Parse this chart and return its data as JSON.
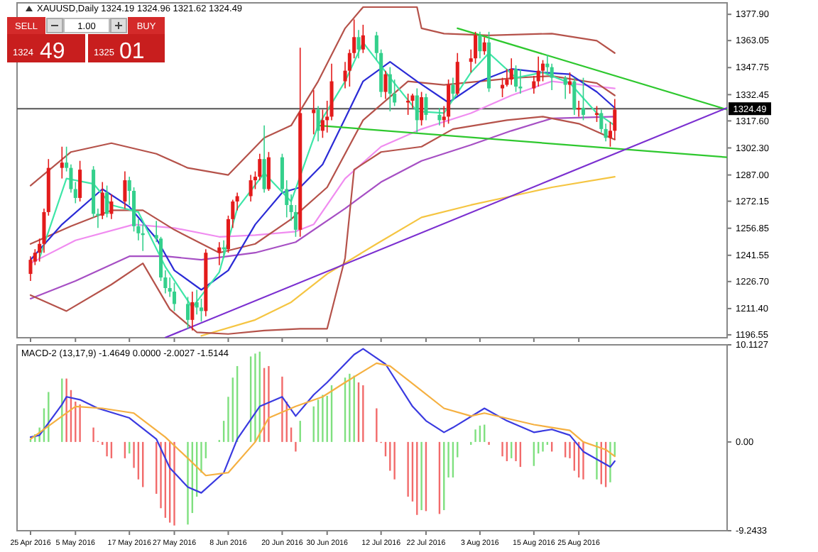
{
  "chart_data": [
    {
      "type": "candlestick",
      "title": "XAUUSD,Daily  1324.19 1324.96 1321.62 1324.49",
      "tick_labels": "y",
      "grid": false,
      "x": [
        "2016-04-25",
        "2016-04-26",
        "2016-04-27",
        "2016-04-28",
        "2016-04-29",
        "2016-05-02",
        "2016-05-03",
        "2016-05-04",
        "2016-05-05",
        "2016-05-06",
        "2016-05-09",
        "2016-05-10",
        "2016-05-11",
        "2016-05-12",
        "2016-05-13",
        "2016-05-16",
        "2016-05-17",
        "2016-05-18",
        "2016-05-19",
        "2016-05-20",
        "2016-05-23",
        "2016-05-24",
        "2016-05-25",
        "2016-05-26",
        "2016-05-27",
        "2016-05-30",
        "2016-05-31",
        "2016-06-01",
        "2016-06-02",
        "2016-06-03",
        "2016-06-06",
        "2016-06-07",
        "2016-06-08",
        "2016-06-09",
        "2016-06-10",
        "2016-06-13",
        "2016-06-14",
        "2016-06-15",
        "2016-06-16",
        "2016-06-17",
        "2016-06-20",
        "2016-06-21",
        "2016-06-22",
        "2016-06-23",
        "2016-06-24",
        "2016-06-27",
        "2016-06-28",
        "2016-06-29",
        "2016-06-30",
        "2016-07-01",
        "2016-07-04",
        "2016-07-05",
        "2016-07-06",
        "2016-07-07",
        "2016-07-08",
        "2016-07-11",
        "2016-07-12",
        "2016-07-13",
        "2016-07-14",
        "2016-07-15",
        "2016-07-18",
        "2016-07-19",
        "2016-07-20",
        "2016-07-21",
        "2016-07-22",
        "2016-07-25",
        "2016-07-26",
        "2016-07-27",
        "2016-07-28",
        "2016-07-29",
        "2016-08-01",
        "2016-08-02",
        "2016-08-03",
        "2016-08-04",
        "2016-08-05",
        "2016-08-08",
        "2016-08-09",
        "2016-08-10",
        "2016-08-11",
        "2016-08-12",
        "2016-08-15",
        "2016-08-16",
        "2016-08-17",
        "2016-08-18",
        "2016-08-19",
        "2016-08-22",
        "2016-08-23",
        "2016-08-24",
        "2016-08-25",
        "2016-08-26",
        "2016-08-29",
        "2016-08-30",
        "2016-08-31",
        "2016-09-01",
        "2016-09-02"
      ],
      "ohlc": [
        [
          1231,
          1241,
          1227,
          1239
        ],
        [
          1238,
          1245,
          1236,
          1243
        ],
        [
          1243,
          1251,
          1238,
          1248
        ],
        [
          1248,
          1268,
          1243,
          1266
        ],
        [
          1266,
          1296,
          1264,
          1291
        ],
        [
          1291,
          1303,
          1285,
          1294
        ],
        [
          1294,
          1303,
          1289,
          1291
        ],
        [
          1291,
          1293,
          1277,
          1279
        ],
        [
          1279,
          1283,
          1271,
          1274
        ],
        [
          1274,
          1295,
          1272,
          1290
        ],
        [
          1290,
          1292,
          1263,
          1265
        ],
        [
          1265,
          1268,
          1257,
          1264
        ],
        [
          1264,
          1283,
          1262,
          1277
        ],
        [
          1277,
          1281,
          1263,
          1265
        ],
        [
          1265,
          1276,
          1262,
          1272
        ],
        [
          1272,
          1289,
          1268,
          1284
        ],
        [
          1284,
          1286,
          1270,
          1278
        ],
        [
          1278,
          1280,
          1255,
          1258
        ],
        [
          1258,
          1262,
          1250,
          1254
        ],
        [
          1254,
          1259,
          1244,
          1253
        ],
        [
          1253,
          1261,
          1249,
          1251
        ],
        [
          1251,
          1252,
          1227,
          1229
        ],
        [
          1229,
          1233,
          1220,
          1223
        ],
        [
          1223,
          1229,
          1218,
          1221
        ],
        [
          1221,
          1226,
          1210,
          1214
        ],
        [
          1214,
          1218,
          1200,
          1205
        ],
        [
          1205,
          1221,
          1199,
          1215
        ],
        [
          1215,
          1222,
          1208,
          1212
        ],
        [
          1212,
          1217,
          1204,
          1210
        ],
        [
          1210,
          1245,
          1207,
          1243
        ],
        [
          1243,
          1249,
          1236,
          1246
        ],
        [
          1246,
          1250,
          1240,
          1245
        ],
        [
          1245,
          1264,
          1243,
          1262
        ],
        [
          1262,
          1273,
          1257,
          1272
        ],
        [
          1272,
          1277,
          1267,
          1275
        ],
        [
          1275,
          1287,
          1272,
          1284
        ],
        [
          1284,
          1289,
          1279,
          1286
        ],
        [
          1286,
          1299,
          1284,
          1296
        ],
        [
          1296,
          1315,
          1277,
          1279
        ],
        [
          1279,
          1300,
          1278,
          1297
        ],
        [
          1297,
          1299,
          1277,
          1279
        ],
        [
          1279,
          1284,
          1263,
          1270
        ],
        [
          1270,
          1276,
          1261,
          1266
        ],
        [
          1266,
          1270,
          1252,
          1256
        ],
        [
          1256,
          1359,
          1252,
          1322
        ],
        [
          1322,
          1335,
          1310,
          1324
        ],
        [
          1324,
          1326,
          1306,
          1312
        ],
        [
          1312,
          1324,
          1308,
          1318
        ],
        [
          1318,
          1329,
          1311,
          1320
        ],
        [
          1320,
          1350,
          1318,
          1340
        ],
        [
          1340,
          1351,
          1336,
          1346
        ],
        [
          1346,
          1358,
          1337,
          1356
        ],
        [
          1356,
          1375,
          1353,
          1365
        ],
        [
          1365,
          1369,
          1353,
          1358
        ],
        [
          1358,
          1372,
          1356,
          1366
        ],
        [
          1366,
          1368,
          1352,
          1356
        ],
        [
          1356,
          1358,
          1331,
          1334
        ],
        [
          1334,
          1346,
          1330,
          1344
        ],
        [
          1344,
          1348,
          1323,
          1333
        ],
        [
          1333,
          1341,
          1326,
          1328
        ],
        [
          1328,
          1333,
          1321,
          1329
        ],
        [
          1329,
          1333,
          1325,
          1332
        ],
        [
          1332,
          1336,
          1311,
          1318
        ],
        [
          1318,
          1334,
          1315,
          1331
        ],
        [
          1331,
          1333,
          1318,
          1321
        ],
        [
          1321,
          1325,
          1315,
          1318
        ],
        [
          1318,
          1326,
          1314,
          1320
        ],
        [
          1320,
          1341,
          1316,
          1338
        ],
        [
          1338,
          1342,
          1329,
          1333
        ],
        [
          1333,
          1356,
          1332,
          1351
        ],
        [
          1351,
          1358,
          1345,
          1353
        ],
        [
          1353,
          1368,
          1350,
          1366
        ],
        [
          1366,
          1368,
          1353,
          1357
        ],
        [
          1357,
          1365,
          1355,
          1362
        ],
        [
          1362,
          1368,
          1334,
          1336
        ],
        [
          1336,
          1342,
          1331,
          1338
        ],
        [
          1338,
          1347,
          1337,
          1341
        ],
        [
          1341,
          1353,
          1338,
          1347
        ],
        [
          1347,
          1349,
          1334,
          1337
        ],
        [
          1337,
          1347,
          1333,
          1336
        ],
        [
          1336,
          1343,
          1333,
          1340
        ],
        [
          1340,
          1354,
          1337,
          1346
        ],
        [
          1346,
          1352,
          1340,
          1350
        ],
        [
          1350,
          1355,
          1344,
          1348
        ],
        [
          1348,
          1350,
          1335,
          1342
        ],
        [
          1342,
          1343,
          1330,
          1338
        ],
        [
          1338,
          1345,
          1333,
          1340
        ],
        [
          1340,
          1342,
          1321,
          1324
        ],
        [
          1324,
          1329,
          1320,
          1325
        ],
        [
          1325,
          1342,
          1318,
          1321
        ],
        [
          1321,
          1326,
          1317,
          1322
        ],
        [
          1322,
          1324,
          1311,
          1313
        ],
        [
          1313,
          1316,
          1306,
          1308
        ],
        [
          1308,
          1317,
          1303,
          1312
        ],
        [
          1312,
          1330,
          1307,
          1324
        ]
      ],
      "colors": [
        "#e31b1b",
        "#e31b1b",
        "#e31b1b",
        "#e31b1b",
        "#e31b1b",
        "#e31b1b",
        "#34d08c",
        "#34d08c",
        "#34d08c",
        "#e31b1b",
        "#34d08c",
        "#34d08c",
        "#e31b1b",
        "#34d08c",
        "#e31b1b",
        "#e31b1b",
        "#34d08c",
        "#34d08c",
        "#34d08c",
        "#34d08c",
        "#34d08c",
        "#34d08c",
        "#34d08c",
        "#34d08c",
        "#34d08c",
        "#34d08c",
        "#e31b1b",
        "#34d08c",
        "#34d08c",
        "#e31b1b",
        "#e31b1b",
        "#34d08c",
        "#e31b1b",
        "#e31b1b",
        "#e31b1b",
        "#e31b1b",
        "#e31b1b",
        "#e31b1b",
        "#34d08c",
        "#e31b1b",
        "#34d08c",
        "#34d08c",
        "#34d08c",
        "#34d08c",
        "#e31b1b",
        "#e31b1b",
        "#34d08c",
        "#e31b1b",
        "#e31b1b",
        "#e31b1b",
        "#e31b1b",
        "#e31b1b",
        "#e31b1b",
        "#34d08c",
        "#e31b1b",
        "#34d08c",
        "#34d08c",
        "#e31b1b",
        "#34d08c",
        "#34d08c",
        "#e31b1b",
        "#e31b1b",
        "#34d08c",
        "#e31b1b",
        "#34d08c",
        "#34d08c",
        "#e31b1b",
        "#e31b1b",
        "#34d08c",
        "#e31b1b",
        "#e31b1b",
        "#e31b1b",
        "#34d08c",
        "#e31b1b",
        "#34d08c",
        "#e31b1b",
        "#e31b1b",
        "#e31b1b",
        "#34d08c",
        "#34d08c",
        "#e31b1b",
        "#e31b1b",
        "#e31b1b",
        "#34d08c",
        "#34d08c",
        "#34d08c",
        "#e31b1b",
        "#34d08c",
        "#e31b1b",
        "#34d08c",
        "#e31b1b",
        "#34d08c",
        "#34d08c",
        "#e31b1b",
        "#e31b1b"
      ],
      "xlim": [
        "2016-04-22",
        "2016-09-27"
      ],
      "xticks": [
        {
          "value": "2016-04-25",
          "label": null
        },
        {
          "value": "2016-05-05",
          "label": null
        },
        {
          "value": "2016-05-17",
          "label": null
        },
        {
          "value": "2016-05-27",
          "label": null
        },
        {
          "value": "2016-06-08",
          "label": null
        },
        {
          "value": "2016-06-20",
          "label": null
        },
        {
          "value": "2016-06-30",
          "label": null
        },
        {
          "value": "2016-07-12",
          "label": null
        },
        {
          "value": "2016-07-22",
          "label": null
        },
        {
          "value": "2016-08-03",
          "label": null
        },
        {
          "value": "2016-08-15",
          "label": null
        },
        {
          "value": "2016-08-25",
          "label": null
        }
      ],
      "ylim": [
        1194.9,
        1384.4
      ],
      "yticks": [
        {
          "value": 1196.55,
          "label": "1196.55"
        },
        {
          "value": 1211.4,
          "label": "1211.40"
        },
        {
          "value": 1226.7,
          "label": "1226.70"
        },
        {
          "value": 1241.55,
          "label": "1241.55"
        },
        {
          "value": 1256.85,
          "label": "1256.85"
        },
        {
          "value": 1272.15,
          "label": "1272.15"
        },
        {
          "value": 1287,
          "label": "1287.00"
        },
        {
          "value": 1302.3,
          "label": "1302.30"
        },
        {
          "value": 1317.6,
          "label": "1317.60"
        },
        {
          "value": 1332.45,
          "label": "1332.45"
        },
        {
          "value": 1347.75,
          "label": "1347.75"
        },
        {
          "value": 1363.05,
          "label": "1363.05"
        },
        {
          "value": 1377.9,
          "label": "1377.90"
        }
      ],
      "ref_lines": [
        {
          "axis": "y",
          "value": 1324.49,
          "label": "1324.49",
          "color": "#555555"
        }
      ],
      "annotations": [
        "SELL",
        "1.00",
        "BUY",
        "1324",
        "49",
        "1325",
        "01"
      ],
      "series": [
        {
          "type": "line",
          "color": "#f5c542",
          "x": [
            "2016-06-02",
            "2016-06-14",
            "2016-06-22",
            "2016-06-30",
            "2016-07-11",
            "2016-07-21",
            "2016-08-01",
            "2016-08-10",
            "2016-08-19",
            "2016-09-02"
          ],
          "values": [
            1196,
            1205,
            1215,
            1231,
            1248,
            1263,
            1270,
            1275,
            1280,
            1286
          ]
        },
        {
          "type": "line",
          "color": "#a64fc4",
          "x": [
            "2016-04-25",
            "2016-05-05",
            "2016-05-17",
            "2016-05-25",
            "2016-06-02",
            "2016-06-14",
            "2016-06-23",
            "2016-07-04",
            "2016-07-12",
            "2016-07-21",
            "2016-08-01",
            "2016-08-10",
            "2016-08-19",
            "2016-09-02"
          ],
          "values": [
            1217,
            1227,
            1241,
            1241,
            1239,
            1243,
            1249,
            1268,
            1283,
            1295,
            1304,
            1312,
            1319,
            1320
          ]
        },
        {
          "type": "line",
          "color": "#f08cf0",
          "x": [
            "2016-04-25",
            "2016-05-05",
            "2016-05-18",
            "2016-05-27",
            "2016-06-06",
            "2016-06-14",
            "2016-06-23",
            "2016-06-27",
            "2016-07-04",
            "2016-07-12",
            "2016-07-21",
            "2016-08-01",
            "2016-08-10",
            "2016-08-19",
            "2016-09-02"
          ],
          "values": [
            1237,
            1250,
            1259,
            1257,
            1252,
            1253,
            1255,
            1259,
            1285,
            1303,
            1313,
            1322,
            1332,
            1340,
            1336
          ]
        },
        {
          "type": "line",
          "color": "#b5524a",
          "x": [
            "2016-04-25",
            "2016-05-04",
            "2016-05-13",
            "2016-05-23",
            "2016-05-30",
            "2016-06-08",
            "2016-06-16",
            "2016-06-22",
            "2016-06-28",
            "2016-07-04",
            "2016-07-08",
            "2016-07-20",
            "2016-07-21",
            "2016-07-26",
            "2016-08-05",
            "2016-08-19",
            "2016-08-29",
            "2016-09-02"
          ],
          "values": [
            1281,
            1300,
            1305,
            1299,
            1291,
            1287,
            1308,
            1315,
            1340,
            1370,
            1382,
            1382,
            1370,
            1367,
            1366,
            1367,
            1363,
            1356
          ]
        },
        {
          "type": "line",
          "color": "#b5524a",
          "x": [
            "2016-04-25",
            "2016-05-04",
            "2016-05-13",
            "2016-05-20",
            "2016-05-27",
            "2016-06-06",
            "2016-06-14",
            "2016-06-22",
            "2016-06-30",
            "2016-07-08",
            "2016-07-18",
            "2016-07-26",
            "2016-08-03",
            "2016-08-11",
            "2016-08-19",
            "2016-08-29",
            "2016-09-02"
          ],
          "values": [
            1248,
            1258,
            1267,
            1267,
            1256,
            1243,
            1248,
            1262,
            1280,
            1318,
            1340,
            1338,
            1340,
            1342,
            1343,
            1339,
            1332
          ]
        },
        {
          "type": "line",
          "color": "#b5524a",
          "x": [
            "2016-04-25",
            "2016-05-03",
            "2016-05-13",
            "2016-05-20",
            "2016-05-26",
            "2016-06-01",
            "2016-06-08",
            "2016-06-16",
            "2016-06-24",
            "2016-06-30",
            "2016-07-04",
            "2016-07-06",
            "2016-07-12",
            "2016-07-21",
            "2016-07-28",
            "2016-08-09",
            "2016-08-17",
            "2016-08-25",
            "2016-09-02"
          ],
          "values": [
            1219,
            1210,
            1225,
            1237,
            1211,
            1198,
            1197,
            1199,
            1200,
            1200,
            1240,
            1290,
            1300,
            1303,
            1313,
            1318,
            1320,
            1316,
            1307
          ]
        },
        {
          "type": "line",
          "color": "#2b2bd6",
          "x": [
            "2016-04-25",
            "2016-05-02",
            "2016-05-11",
            "2016-05-17",
            "2016-05-23",
            "2016-05-27",
            "2016-06-02",
            "2016-06-08",
            "2016-06-14",
            "2016-06-20",
            "2016-06-24",
            "2016-06-29",
            "2016-07-04",
            "2016-07-08",
            "2016-07-14",
            "2016-07-20",
            "2016-07-27",
            "2016-08-03",
            "2016-08-10",
            "2016-08-17",
            "2016-08-23",
            "2016-08-29",
            "2016-09-02"
          ],
          "values": [
            1239,
            1259,
            1279,
            1269,
            1251,
            1233,
            1222,
            1233,
            1259,
            1277,
            1280,
            1293,
            1319,
            1340,
            1351,
            1340,
            1328,
            1340,
            1347,
            1345,
            1344,
            1334,
            1325
          ]
        },
        {
          "type": "line",
          "color": "#3ee6a8",
          "x": [
            "2016-04-27",
            "2016-05-03",
            "2016-05-09",
            "2016-05-13",
            "2016-05-19",
            "2016-05-25",
            "2016-05-31",
            "2016-06-06",
            "2016-06-10",
            "2016-06-16",
            "2016-06-22",
            "2016-06-28",
            "2016-07-04",
            "2016-07-08",
            "2016-07-14",
            "2016-07-20",
            "2016-07-26",
            "2016-08-01",
            "2016-08-05",
            "2016-08-11",
            "2016-08-17",
            "2016-08-23",
            "2016-08-29",
            "2016-09-02"
          ],
          "values": [
            1240,
            1285,
            1282,
            1270,
            1266,
            1235,
            1212,
            1232,
            1268,
            1288,
            1272,
            1315,
            1340,
            1362,
            1342,
            1323,
            1322,
            1345,
            1356,
            1342,
            1345,
            1339,
            1322,
            1315
          ]
        },
        {
          "type": "line",
          "color": "#2ec82e",
          "x": [
            "2016-07-29",
            "2016-09-27"
          ],
          "values": [
            1370,
            1324
          ]
        },
        {
          "type": "line",
          "color": "#2ec82e",
          "x": [
            "2016-06-28",
            "2016-09-27"
          ],
          "values": [
            1315,
            1297
          ]
        },
        {
          "type": "line",
          "color": "#7b2fd0",
          "x": [
            "2016-05-25",
            "2016-09-27"
          ],
          "values": [
            1195,
            1325
          ]
        }
      ]
    },
    {
      "type": "bar",
      "title": "MACD-2 (13,17,9) -1.4649 0.0000 -2.0027 -1.5144",
      "grid": false,
      "x": [
        "2016-04-25",
        "2016-04-26",
        "2016-04-27",
        "2016-04-28",
        "2016-04-29",
        "2016-05-02",
        "2016-05-03",
        "2016-05-04",
        "2016-05-05",
        "2016-05-06",
        "2016-05-09",
        "2016-05-10",
        "2016-05-11",
        "2016-05-12",
        "2016-05-13",
        "2016-05-16",
        "2016-05-17",
        "2016-05-18",
        "2016-05-19",
        "2016-05-20",
        "2016-05-23",
        "2016-05-24",
        "2016-05-25",
        "2016-05-26",
        "2016-05-27",
        "2016-05-30",
        "2016-05-31",
        "2016-06-01",
        "2016-06-02",
        "2016-06-03",
        "2016-06-06",
        "2016-06-07",
        "2016-06-08",
        "2016-06-09",
        "2016-06-10",
        "2016-06-13",
        "2016-06-14",
        "2016-06-15",
        "2016-06-16",
        "2016-06-17",
        "2016-06-20",
        "2016-06-21",
        "2016-06-22",
        "2016-06-23",
        "2016-06-24",
        "2016-06-27",
        "2016-06-28",
        "2016-06-29",
        "2016-06-30",
        "2016-07-01",
        "2016-07-04",
        "2016-07-05",
        "2016-07-06",
        "2016-07-07",
        "2016-07-08",
        "2016-07-11",
        "2016-07-12",
        "2016-07-13",
        "2016-07-14",
        "2016-07-15",
        "2016-07-18",
        "2016-07-19",
        "2016-07-20",
        "2016-07-21",
        "2016-07-22",
        "2016-07-25",
        "2016-07-26",
        "2016-07-27",
        "2016-07-28",
        "2016-07-29",
        "2016-08-01",
        "2016-08-02",
        "2016-08-03",
        "2016-08-04",
        "2016-08-05",
        "2016-08-08",
        "2016-08-09",
        "2016-08-10",
        "2016-08-11",
        "2016-08-12",
        "2016-08-15",
        "2016-08-16",
        "2016-08-17",
        "2016-08-18",
        "2016-08-19",
        "2016-08-22",
        "2016-08-23",
        "2016-08-24",
        "2016-08-25",
        "2016-08-26",
        "2016-08-29",
        "2016-08-30",
        "2016-08-31",
        "2016-09-01",
        "2016-09-02"
      ],
      "xlim": [
        "2016-04-22",
        "2016-09-27"
      ],
      "xticks": [
        {
          "value": "2016-04-25",
          "label": "25 Apr 2016"
        },
        {
          "value": "2016-05-05",
          "label": "5 May 2016"
        },
        {
          "value": "2016-05-17",
          "label": "17 May 2016"
        },
        {
          "value": "2016-05-27",
          "label": "27 May 2016"
        },
        {
          "value": "2016-06-08",
          "label": "8 Jun 2016"
        },
        {
          "value": "2016-06-20",
          "label": "20 Jun 2016"
        },
        {
          "value": "2016-06-30",
          "label": "30 Jun 2016"
        },
        {
          "value": "2016-07-12",
          "label": "12 Jul 2016"
        },
        {
          "value": "2016-07-22",
          "label": "22 Jul 2016"
        },
        {
          "value": "2016-08-03",
          "label": "3 Aug 2016"
        },
        {
          "value": "2016-08-15",
          "label": "15 Aug 2016"
        },
        {
          "value": "2016-08-25",
          "label": "25 Aug 2016"
        }
      ],
      "ylim": [
        -9.2433,
        10.1127
      ],
      "yticks": [
        {
          "value": -9.2433,
          "label": "-9.2433"
        },
        {
          "value": 0,
          "label": "0.00"
        },
        {
          "value": 10.1127,
          "label": "10.1127"
        }
      ],
      "series": [
        {
          "type": "bar",
          "values": [
            0.3,
            0.8,
            1.5,
            3.5,
            5.2,
            6.6,
            6.6,
            5.4,
            4.2,
            3.9,
            1.5,
            0.1,
            -0.3,
            -1.5,
            -1.7,
            -1.7,
            -1.2,
            -2.7,
            -3.9,
            -4.7,
            -5.4,
            -6.9,
            -7.9,
            -8.4,
            -8.7,
            -8.6,
            -7.4,
            -5.7,
            -3.2,
            -1.7,
            0.2,
            2.2,
            4.7,
            6.7,
            7.9,
            8.9,
            9.2,
            9.4,
            7.7,
            7.9,
            6.8,
            4.2,
            1.5,
            -1,
            2.2,
            3.7,
            4.4,
            4.9,
            4.8,
            5.9,
            6.7,
            7.1,
            6.9,
            6.2,
            5.9,
            3.5,
            -0.1,
            -1.5,
            -3,
            -3.9,
            -5.7,
            -6.2,
            -7.6,
            -7.1,
            -7.2,
            -7.5,
            -7.1,
            -3.7,
            -3.7,
            -1.6,
            -0.3,
            1.3,
            1.7,
            1.8,
            -0.3,
            -1.5,
            -2,
            -1.7,
            -2,
            -2.6,
            -2.5,
            -1.2,
            -1,
            -0.3,
            -1,
            -1.6,
            -1.7,
            -3,
            -3.7,
            -3.9,
            -3.9,
            -4.4,
            -4.7,
            -4.2,
            -1.5
          ],
          "colors": [
            "#7fe07f",
            "#7fe07f",
            "#7fe07f",
            "#7fe07f",
            "#7fe07f",
            "#7fe07f",
            "#f26b6b",
            "#f26b6b",
            "#f26b6b",
            "#f26b6b",
            "#f26b6b",
            "#f26b6b",
            "#f26b6b",
            "#f26b6b",
            "#f26b6b",
            "#f26b6b",
            "#7fe07f",
            "#f26b6b",
            "#f26b6b",
            "#f26b6b",
            "#f26b6b",
            "#f26b6b",
            "#f26b6b",
            "#f26b6b",
            "#f26b6b",
            "#7fe07f",
            "#7fe07f",
            "#7fe07f",
            "#7fe07f",
            "#7fe07f",
            "#7fe07f",
            "#7fe07f",
            "#7fe07f",
            "#7fe07f",
            "#7fe07f",
            "#7fe07f",
            "#7fe07f",
            "#7fe07f",
            "#f26b6b",
            "#f26b6b",
            "#f26b6b",
            "#f26b6b",
            "#f26b6b",
            "#f26b6b",
            "#7fe07f",
            "#7fe07f",
            "#7fe07f",
            "#7fe07f",
            "#7fe07f",
            "#7fe07f",
            "#7fe07f",
            "#7fe07f",
            "#7fe07f",
            "#f26b6b",
            "#f26b6b",
            "#f26b6b",
            "#f26b6b",
            "#f26b6b",
            "#f26b6b",
            "#f26b6b",
            "#f26b6b",
            "#f26b6b",
            "#f26b6b",
            "#7fe07f",
            "#f26b6b",
            "#f26b6b",
            "#7fe07f",
            "#7fe07f",
            "#7fe07f",
            "#7fe07f",
            "#7fe07f",
            "#7fe07f",
            "#7fe07f",
            "#7fe07f",
            "#f26b6b",
            "#f26b6b",
            "#f26b6b",
            "#7fe07f",
            "#f26b6b",
            "#f26b6b",
            "#7fe07f",
            "#7fe07f",
            "#7fe07f",
            "#7fe07f",
            "#f26b6b",
            "#f26b6b",
            "#f26b6b",
            "#f26b6b",
            "#f26b6b",
            "#f26b6b",
            "#7fe07f",
            "#f26b6b",
            "#f26b6b",
            "#7fe07f",
            "#7fe07f"
          ]
        },
        {
          "type": "line",
          "color": "#3a3ae0",
          "x": [
            "2016-04-25",
            "2016-04-27",
            "2016-05-02",
            "2016-05-03",
            "2016-05-06",
            "2016-05-10",
            "2016-05-17",
            "2016-05-23",
            "2016-05-26",
            "2016-05-30",
            "2016-06-02",
            "2016-06-07",
            "2016-06-10",
            "2016-06-15",
            "2016-06-20",
            "2016-06-23",
            "2016-06-27",
            "2016-06-30",
            "2016-07-06",
            "2016-07-08",
            "2016-07-13",
            "2016-07-19",
            "2016-07-22",
            "2016-07-26",
            "2016-07-28",
            "2016-08-04",
            "2016-08-09",
            "2016-08-15",
            "2016-08-19",
            "2016-08-23",
            "2016-08-26",
            "2016-09-01",
            "2016-09-02"
          ],
          "values": [
            0.5,
            0.7,
            3.9,
            4.7,
            4.4,
            3.5,
            2.5,
            0.3,
            -2.7,
            -4.7,
            -5.3,
            -3.2,
            0.3,
            3.7,
            4.7,
            2.7,
            4.9,
            6.2,
            9.1,
            9.7,
            8.1,
            3.7,
            2.2,
            1,
            1.5,
            3.5,
            2.2,
            1,
            1.3,
            0.7,
            -1,
            -2.6,
            -2
          ]
        },
        {
          "type": "line",
          "color": "#f5b041",
          "x": [
            "2016-04-25",
            "2016-05-05",
            "2016-05-11",
            "2016-05-18",
            "2016-05-25",
            "2016-05-30",
            "2016-06-03",
            "2016-06-08",
            "2016-06-14",
            "2016-06-17",
            "2016-06-23",
            "2016-06-29",
            "2016-07-04",
            "2016-07-11",
            "2016-07-14",
            "2016-07-20",
            "2016-07-26",
            "2016-08-01",
            "2016-08-04",
            "2016-08-15",
            "2016-08-23",
            "2016-08-26",
            "2016-08-31",
            "2016-09-02"
          ],
          "values": [
            0.3,
            3.7,
            3.5,
            3,
            0.5,
            -1.7,
            -3.5,
            -3.2,
            0,
            2.5,
            3.7,
            4.7,
            6.2,
            8.2,
            7.9,
            5.7,
            3.5,
            2.7,
            3,
            1.8,
            1.2,
            0,
            -0.8,
            -1.5
          ]
        }
      ]
    }
  ]
}
